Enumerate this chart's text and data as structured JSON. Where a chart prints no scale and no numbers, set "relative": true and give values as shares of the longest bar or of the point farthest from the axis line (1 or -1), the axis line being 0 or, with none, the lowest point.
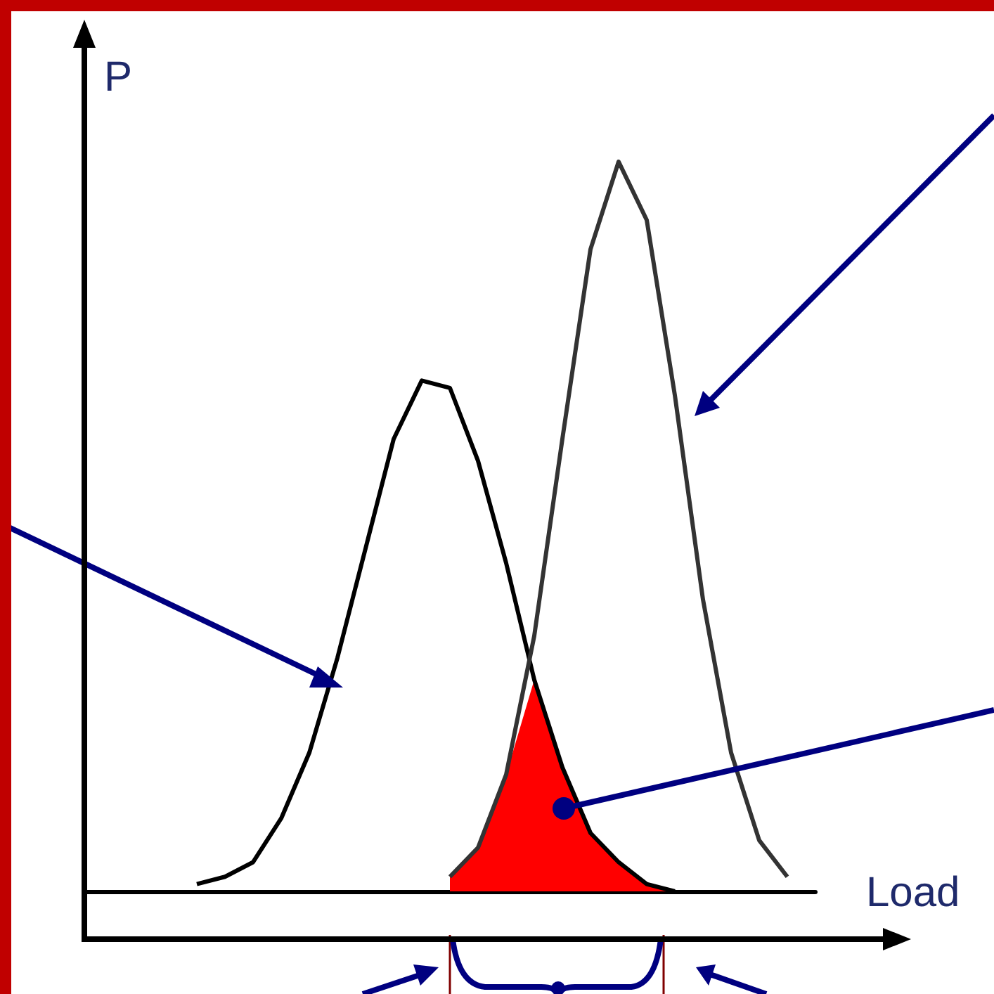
{
  "chart_data": {
    "type": "line",
    "relative": true,
    "xlabel": "Load",
    "ylabel": "P",
    "grid": false,
    "marker": "none",
    "categories": [
      null,
      null,
      null,
      null,
      null,
      null,
      null,
      null,
      null,
      null,
      null,
      null,
      null,
      null,
      null,
      null,
      null,
      null,
      null,
      null,
      null,
      null,
      null,
      null,
      null,
      null,
      null
    ],
    "series": [
      {
        "color": "#000000",
        "values": [
          null,
          null,
          null,
          null,
          0.01,
          0.02,
          0.04,
          0.1,
          0.19,
          0.32,
          0.47,
          0.62,
          0.7,
          0.69,
          0.59,
          0.45,
          0.29,
          0.17,
          0.08,
          0.04,
          0.01,
          0.0,
          null,
          null,
          null,
          null,
          null
        ]
      },
      {
        "color": "#333333",
        "values": [
          null,
          null,
          null,
          null,
          null,
          null,
          null,
          null,
          null,
          null,
          null,
          null,
          null,
          0.02,
          0.06,
          0.16,
          0.35,
          0.62,
          0.88,
          1.0,
          0.92,
          0.68,
          0.4,
          0.19,
          0.07,
          0.02,
          null
        ]
      },
      {
        "type": "area",
        "color": "#ff0000",
        "values": [
          null,
          null,
          null,
          null,
          null,
          null,
          null,
          null,
          null,
          null,
          null,
          null,
          null,
          0.02,
          0.06,
          0.16,
          0.29,
          0.17,
          0.08,
          0.04,
          0.01,
          0.0,
          null,
          null,
          null,
          null,
          null
        ]
      }
    ]
  }
}
